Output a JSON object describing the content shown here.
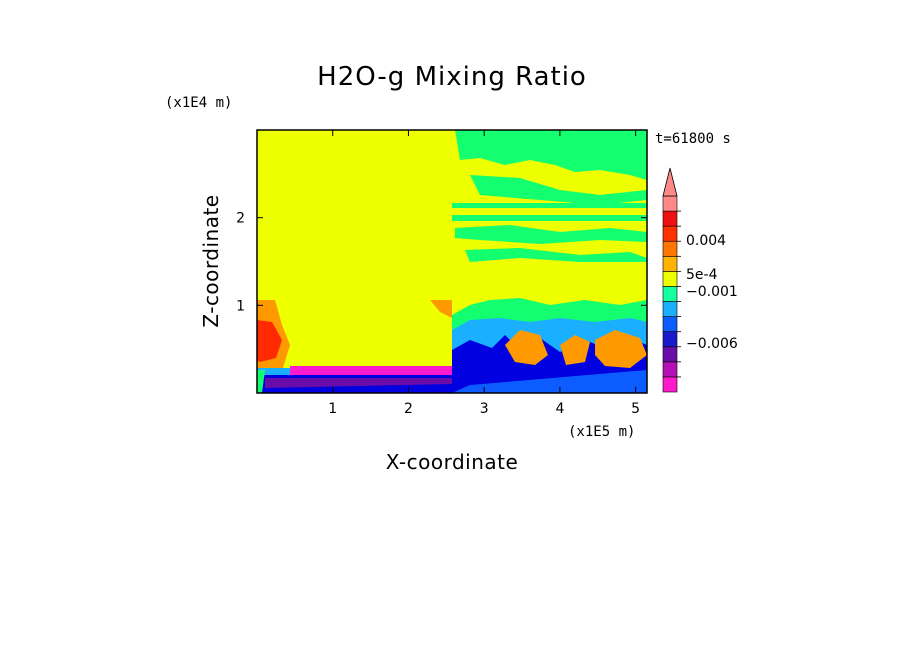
{
  "chart_data": {
    "type": "heatmap",
    "title": "H2O-g Mixing Ratio",
    "xlabel": "X-coordinate",
    "ylabel": "Z-coordinate",
    "x_unit": "(x1E5 m)",
    "y_unit": "(x1E4 m)",
    "time_label": "t=61800 s",
    "xlim": [
      0,
      5.15
    ],
    "ylim": [
      0,
      3.0
    ],
    "x_ticks": [
      "1",
      "2",
      "3",
      "4",
      "5"
    ],
    "y_ticks": [
      "1",
      "2"
    ],
    "colorbar": {
      "colors": [
        "#ff1bcc",
        "#b311b3",
        "#6a0ca8",
        "#1a1acc",
        "#0c5cff",
        "#1ab0ff",
        "#13ffa0",
        "#eeff00",
        "#ffb300",
        "#ff7700",
        "#ff3300",
        "#ee1111",
        "#ff8888"
      ],
      "labels": [
        "0.004",
        "5e-4",
        "-0.001",
        "-0.006"
      ],
      "extend": "max"
    },
    "regions": {
      "background": "#eeff00",
      "cyan": "#1ab0ff",
      "blue": "#0000e0",
      "magenta": "#ff1bcc",
      "green": "#13ff70",
      "orange": "#ff9900",
      "red": "#ff2a00"
    }
  }
}
